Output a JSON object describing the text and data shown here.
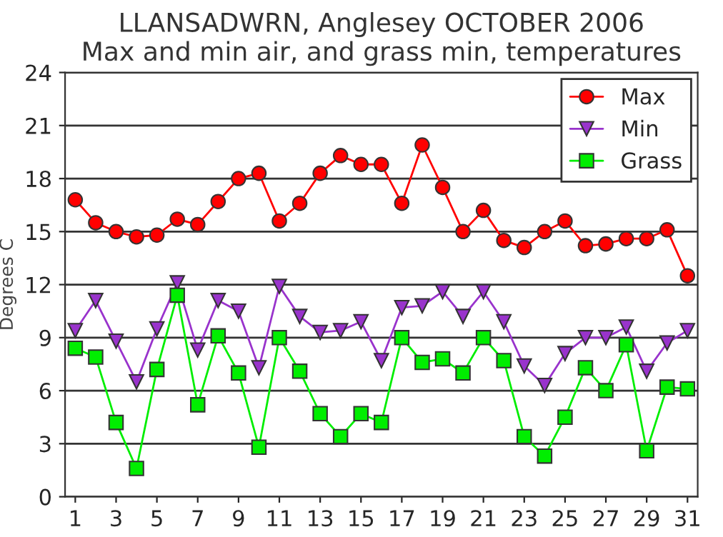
{
  "chart_data": {
    "type": "line",
    "title": "LLANSADWRN, Anglesey OCTOBER 2006\nMax and min air, and grass min, temperatures",
    "ylabel": "Degrees C",
    "x": [
      1,
      2,
      3,
      4,
      5,
      6,
      7,
      8,
      9,
      10,
      11,
      12,
      13,
      14,
      15,
      16,
      17,
      18,
      19,
      20,
      21,
      22,
      23,
      24,
      25,
      26,
      27,
      28,
      29,
      30,
      31
    ],
    "series": [
      {
        "name": "Max",
        "color": "#ff0000",
        "marker": "circle",
        "values": [
          16.8,
          15.5,
          15.0,
          14.7,
          14.8,
          15.7,
          15.4,
          16.7,
          18.0,
          18.3,
          15.6,
          16.6,
          18.3,
          19.3,
          18.8,
          18.8,
          16.6,
          19.9,
          17.5,
          15.0,
          16.2,
          14.5,
          14.1,
          15.0,
          15.6,
          14.2,
          14.3,
          14.6,
          14.6,
          15.1,
          12.5
        ]
      },
      {
        "name": "Min",
        "color": "#9933cc",
        "marker": "triangle",
        "values": [
          9.4,
          11.1,
          8.8,
          6.5,
          9.5,
          12.1,
          8.3,
          11.1,
          10.5,
          7.3,
          11.9,
          10.2,
          9.3,
          9.4,
          9.9,
          7.7,
          10.7,
          10.8,
          11.6,
          10.2,
          11.6,
          9.9,
          7.4,
          6.3,
          8.1,
          9.0,
          9.0,
          9.6,
          7.1,
          8.7,
          9.4
        ]
      },
      {
        "name": "Grass",
        "color": "#00ee00",
        "marker": "square",
        "values": [
          8.4,
          7.9,
          4.2,
          1.6,
          7.2,
          11.4,
          5.2,
          9.1,
          7.0,
          2.8,
          9.0,
          7.1,
          4.7,
          3.4,
          4.7,
          4.2,
          9.0,
          7.6,
          7.8,
          7.0,
          9.0,
          7.7,
          3.4,
          2.3,
          4.5,
          7.3,
          6.0,
          8.6,
          2.6,
          6.2,
          6.1
        ]
      }
    ],
    "xlim": [
      0.5,
      31.5
    ],
    "xticks": [
      1,
      3,
      5,
      7,
      9,
      11,
      13,
      15,
      17,
      19,
      21,
      23,
      25,
      27,
      29,
      31
    ],
    "ylim": [
      0,
      24
    ],
    "yticks": [
      0,
      3,
      6,
      9,
      12,
      15,
      18,
      21,
      24
    ],
    "grid": "y",
    "legend": "top right",
    "line_style": "solid"
  }
}
